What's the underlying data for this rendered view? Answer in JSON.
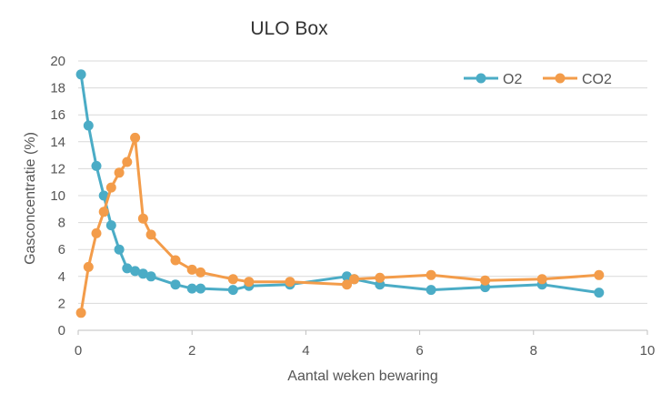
{
  "chart_data": {
    "type": "line",
    "title": "ULO Box",
    "xlabel": "Aantal weken bewaring",
    "ylabel": "Gasconcentratie (%)",
    "xlim": [
      0,
      10
    ],
    "ylim": [
      0,
      20
    ],
    "xticks": [
      "0",
      "2",
      "4",
      "6",
      "8",
      "10"
    ],
    "yticks": [
      "0",
      "2",
      "4",
      "6",
      "8",
      "10",
      "12",
      "14",
      "16",
      "18",
      "20"
    ],
    "grid": "horizontal",
    "legend_position": "top-right",
    "series": [
      {
        "name": "O2",
        "color": "#4bacc6",
        "points": [
          [
            0.05,
            19.0
          ],
          [
            0.18,
            15.2
          ],
          [
            0.32,
            12.2
          ],
          [
            0.45,
            10.0
          ],
          [
            0.58,
            7.8
          ],
          [
            0.72,
            6.0
          ],
          [
            0.86,
            4.6
          ],
          [
            1.0,
            4.4
          ],
          [
            1.14,
            4.2
          ],
          [
            1.28,
            4.0
          ],
          [
            1.71,
            3.4
          ],
          [
            2.0,
            3.1
          ],
          [
            2.15,
            3.1
          ],
          [
            2.72,
            3.0
          ],
          [
            3.0,
            3.3
          ],
          [
            3.72,
            3.4
          ],
          [
            4.72,
            4.0
          ],
          [
            4.85,
            3.8
          ],
          [
            5.3,
            3.4
          ],
          [
            6.2,
            3.0
          ],
          [
            7.15,
            3.2
          ],
          [
            8.15,
            3.4
          ],
          [
            9.15,
            2.8
          ]
        ]
      },
      {
        "name": "CO2",
        "color": "#f39c4a",
        "points": [
          [
            0.05,
            1.3
          ],
          [
            0.18,
            4.7
          ],
          [
            0.32,
            7.2
          ],
          [
            0.45,
            8.8
          ],
          [
            0.58,
            10.6
          ],
          [
            0.72,
            11.7
          ],
          [
            0.86,
            12.5
          ],
          [
            1.0,
            14.3
          ],
          [
            1.14,
            8.3
          ],
          [
            1.28,
            7.1
          ],
          [
            1.71,
            5.2
          ],
          [
            2.0,
            4.5
          ],
          [
            2.15,
            4.3
          ],
          [
            2.72,
            3.8
          ],
          [
            3.0,
            3.6
          ],
          [
            3.72,
            3.6
          ],
          [
            4.72,
            3.4
          ],
          [
            4.85,
            3.8
          ],
          [
            5.3,
            3.9
          ],
          [
            6.2,
            4.1
          ],
          [
            7.15,
            3.7
          ],
          [
            8.15,
            3.8
          ],
          [
            9.15,
            4.1
          ]
        ]
      }
    ]
  }
}
